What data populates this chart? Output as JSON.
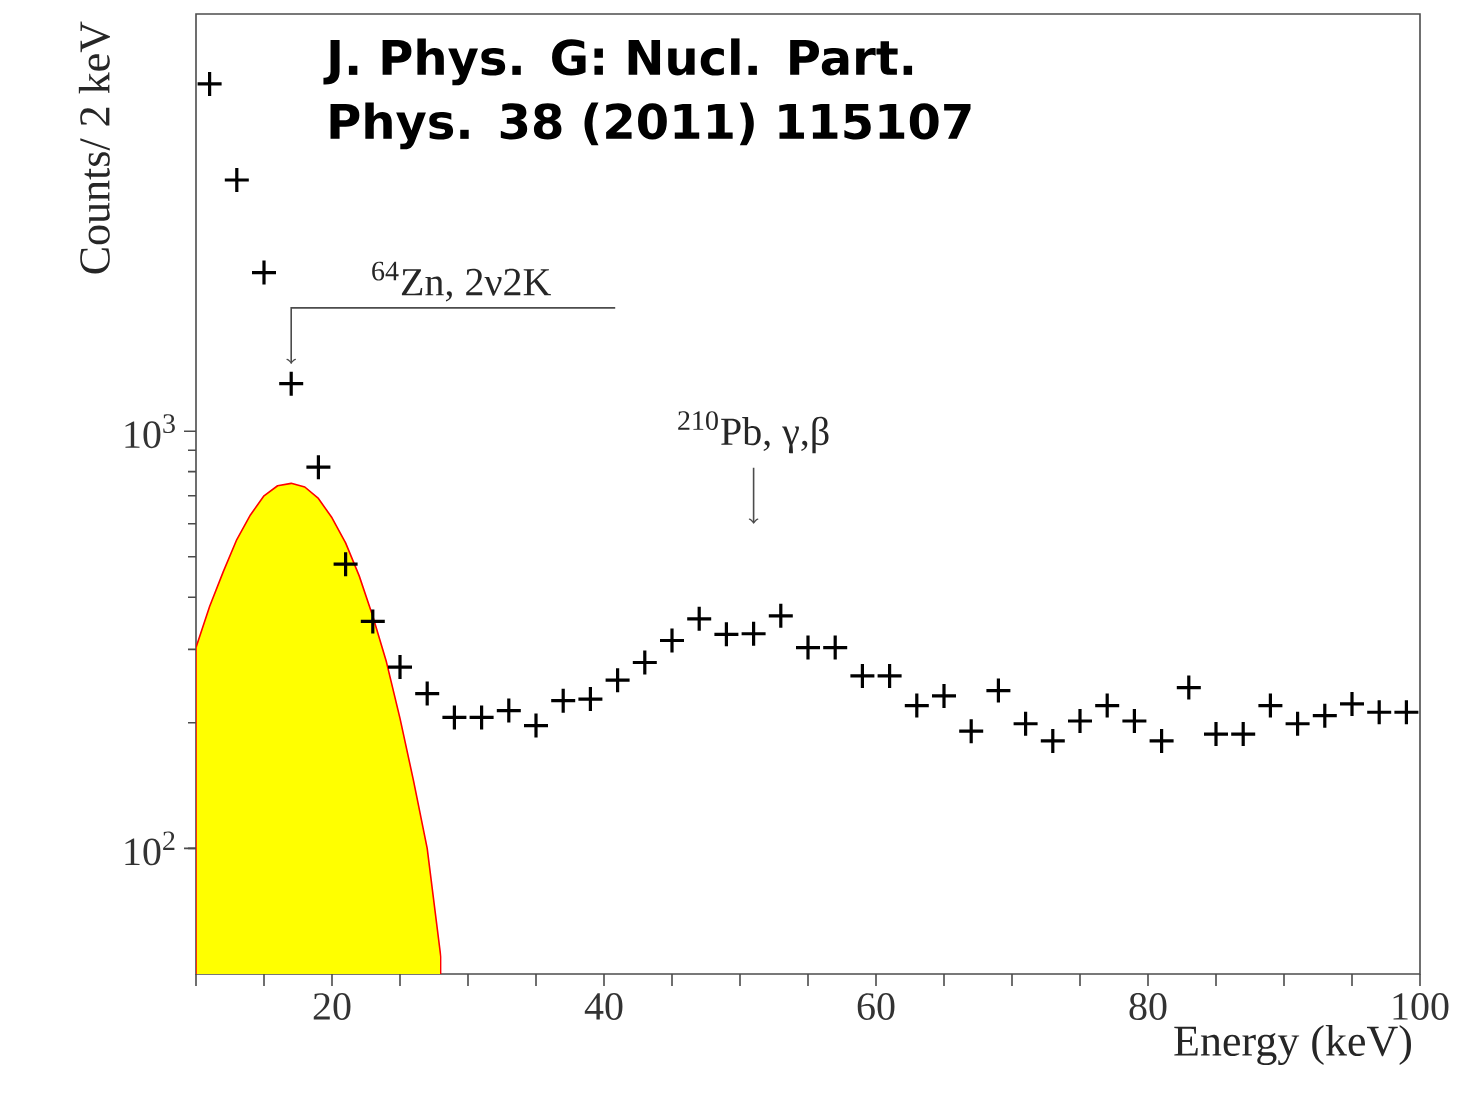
{
  "chart_data": {
    "type": "scatter",
    "log": "y",
    "xlabel": "Energy (keV)",
    "ylabel": "Counts/ 2 keV",
    "xlim": [
      10,
      100
    ],
    "ylim": [
      50,
      10000
    ],
    "xticks": [
      {
        "value": 10,
        "label": null
      },
      {
        "value": 15,
        "label": null
      },
      20,
      {
        "value": 25,
        "label": null
      },
      {
        "value": 30,
        "label": null
      },
      {
        "value": 35,
        "label": null
      },
      40,
      {
        "value": 45,
        "label": null
      },
      {
        "value": 50,
        "label": null
      },
      {
        "value": 55,
        "label": null
      },
      60,
      {
        "value": 65,
        "label": null
      },
      {
        "value": 70,
        "label": null
      },
      {
        "value": 75,
        "label": null
      },
      80,
      {
        "value": 85,
        "label": null
      },
      {
        "value": 90,
        "label": null
      },
      {
        "value": 95,
        "label": null
      },
      100
    ],
    "yticks": [
      {
        "value": 100,
        "label": "10$^{2}$"
      },
      {
        "value": 1000,
        "label": "10$^{3}$"
      }
    ],
    "series": [
      {
        "type": "area",
        "color": "#ffff00",
        "x": [
          10,
          11,
          12,
          13,
          14,
          15,
          16,
          17,
          18,
          19,
          20,
          21,
          22,
          23,
          24,
          25,
          26,
          27,
          28
        ],
        "values": [
          303,
          380,
          460,
          550,
          630,
          700,
          740,
          750,
          735,
          690,
          620,
          540,
          450,
          360,
          280,
          205,
          145,
          100,
          55
        ]
      },
      {
        "color": "#000000",
        "marker": "cross",
        "x": [
          11,
          13,
          15,
          17,
          19,
          21,
          23,
          25,
          27,
          29,
          31,
          33,
          35,
          37,
          39,
          41,
          43,
          45,
          47,
          49,
          51,
          53,
          55,
          57,
          59,
          61,
          63,
          65,
          67,
          69,
          71,
          73,
          75,
          77,
          79,
          81,
          83,
          85,
          87,
          89,
          91,
          93,
          95,
          97,
          99
        ],
        "values": [
          6800,
          4000,
          2400,
          1300,
          820,
          480,
          350,
          272,
          235,
          206,
          206,
          214,
          197,
          226,
          228,
          253,
          279,
          315,
          355,
          326,
          327,
          361,
          303,
          303,
          259,
          259,
          220,
          232,
          191,
          239,
          199,
          181,
          202,
          220,
          202,
          181,
          243,
          188,
          188,
          220,
          199,
          208,
          222,
          212,
          212
        ]
      }
    ],
    "annotations": [
      "J. Phys. G: Nucl. Part. Phys. 38 (2011) 115107",
      {
        "text": "$^{64}$Zn, 2ν2K",
        "x": 17,
        "y": 1450
      },
      {
        "text": "$^{210}$Pb, γ,β",
        "x": 51,
        "y": 600
      }
    ]
  }
}
